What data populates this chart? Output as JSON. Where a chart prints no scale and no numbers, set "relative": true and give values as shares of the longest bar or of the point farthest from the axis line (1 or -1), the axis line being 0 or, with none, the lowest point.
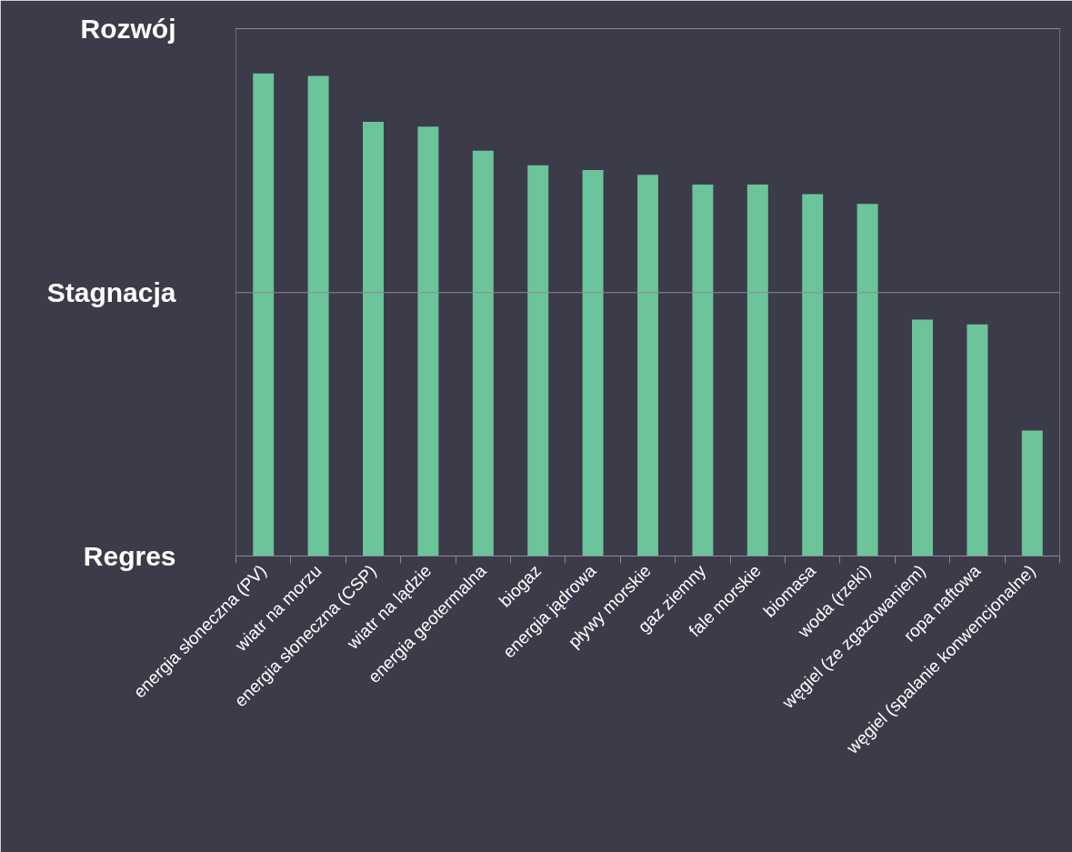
{
  "chart_data": {
    "type": "bar",
    "categories": [
      "energia słoneczna (PV)",
      "wiatr na morzu",
      "energia słoneczna (CSP)",
      "wiatr na lądzie",
      "energia geotermalna",
      "biogaz",
      "energia jądrowa",
      "pływy morskie",
      "gaz ziemny",
      "fale morskie",
      "biomasa",
      "woda (rzeki)",
      "węgiel (ze zgazowaniem)",
      "ropa naftowa",
      "węgiel (spalanie konwencjonalne)"
    ],
    "values": [
      1,
      0.995,
      0.9,
      0.89,
      0.84,
      0.81,
      0.8,
      0.79,
      0.77,
      0.77,
      0.75,
      0.73,
      0.49,
      0.48,
      0.26
    ],
    "relative": true,
    "color": "#6cc49a",
    "annotations": [
      "Regres",
      "Rozwój"
    ],
    "ref_lines": [
      {
        "axis": "y",
        "value": 0.546,
        "label": "Stagnacja",
        "color": "#8a8a94"
      }
    ]
  }
}
